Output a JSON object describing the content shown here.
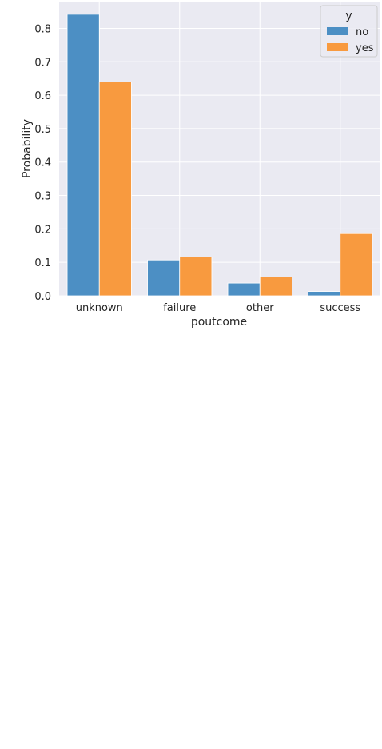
{
  "chart_data": {
    "type": "bar",
    "categories": [
      "unknown",
      "failure",
      "other",
      "success"
    ],
    "series": [
      {
        "name": "no",
        "color": "#4c8fc4",
        "values": [
          0.842,
          0.107,
          0.038,
          0.013
        ]
      },
      {
        "name": "yes",
        "color": "#f89a3f",
        "values": [
          0.64,
          0.116,
          0.056,
          0.186
        ]
      }
    ],
    "xlabel": "poutcome",
    "ylabel": "Probability",
    "ylim": [
      0,
      0.88
    ],
    "yticks": [
      "0.0",
      "0.1",
      "0.2",
      "0.3",
      "0.4",
      "0.5",
      "0.6",
      "0.7",
      "0.8"
    ],
    "legend": {
      "title": "y",
      "placement": "top-right"
    },
    "grid": true,
    "background": "#eaeaf2"
  }
}
